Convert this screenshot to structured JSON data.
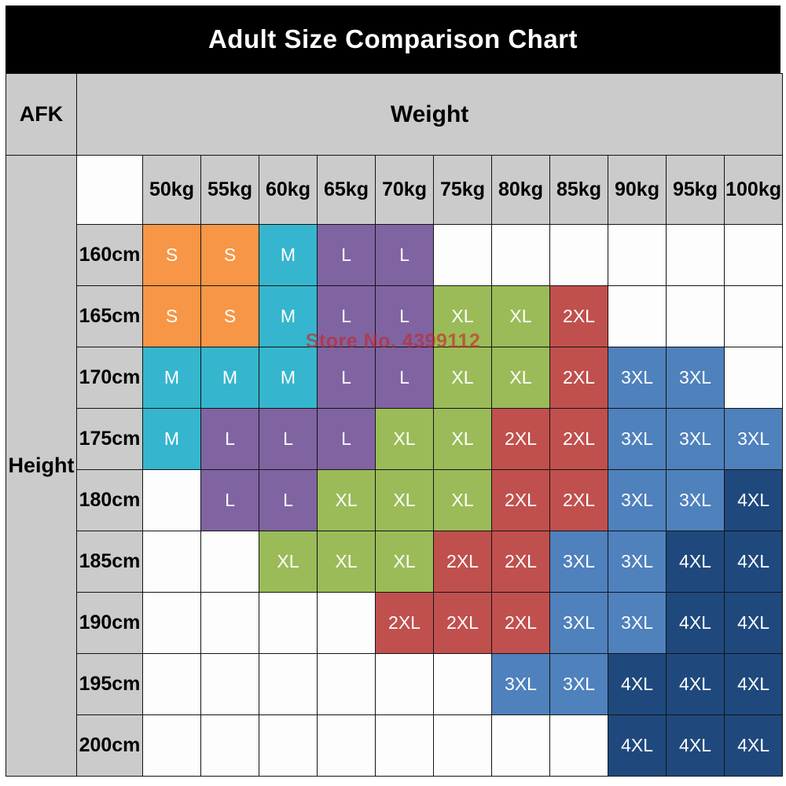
{
  "title": "Adult Size Comparison Chart",
  "corner_label": "AFK",
  "watermark": "Store No. 4399112",
  "chart_data": {
    "type": "table",
    "title": "Adult Size Comparison Chart",
    "x_axis_label": "Weight",
    "y_axis_label": "Height",
    "columns": [
      "50kg",
      "55kg",
      "60kg",
      "65kg",
      "70kg",
      "75kg",
      "80kg",
      "85kg",
      "90kg",
      "95kg",
      "100kg"
    ],
    "rows": [
      {
        "height": "160cm",
        "sizes": [
          "S",
          "S",
          "M",
          "L",
          "L",
          "",
          "",
          "",
          "",
          "",
          ""
        ]
      },
      {
        "height": "165cm",
        "sizes": [
          "S",
          "S",
          "M",
          "L",
          "L",
          "XL",
          "XL",
          "2XL",
          "",
          "",
          ""
        ]
      },
      {
        "height": "170cm",
        "sizes": [
          "M",
          "M",
          "M",
          "L",
          "L",
          "XL",
          "XL",
          "2XL",
          "3XL",
          "3XL",
          ""
        ]
      },
      {
        "height": "175cm",
        "sizes": [
          "M",
          "L",
          "L",
          "L",
          "XL",
          "XL",
          "2XL",
          "2XL",
          "3XL",
          "3XL",
          "3XL"
        ]
      },
      {
        "height": "180cm",
        "sizes": [
          "",
          "L",
          "L",
          "XL",
          "XL",
          "XL",
          "2XL",
          "2XL",
          "3XL",
          "3XL",
          "4XL"
        ]
      },
      {
        "height": "185cm",
        "sizes": [
          "",
          "",
          "XL",
          "XL",
          "XL",
          "2XL",
          "2XL",
          "3XL",
          "3XL",
          "4XL",
          "4XL"
        ]
      },
      {
        "height": "190cm",
        "sizes": [
          "",
          "",
          "",
          "",
          "2XL",
          "2XL",
          "2XL",
          "3XL",
          "3XL",
          "4XL",
          "4XL"
        ]
      },
      {
        "height": "195cm",
        "sizes": [
          "",
          "",
          "",
          "",
          "",
          "",
          "3XL",
          "3XL",
          "4XL",
          "4XL",
          "4XL"
        ]
      },
      {
        "height": "200cm",
        "sizes": [
          "",
          "",
          "",
          "",
          "",
          "",
          "",
          "",
          "4XL",
          "4XL",
          "4XL"
        ]
      }
    ],
    "size_colors": {
      "S": "#F79646",
      "M": "#35B6CE",
      "L": "#8064A2",
      "XL": "#9BBB59",
      "2XL": "#C0504D",
      "3XL": "#4F81BD",
      "4XL": "#1F497D"
    }
  }
}
